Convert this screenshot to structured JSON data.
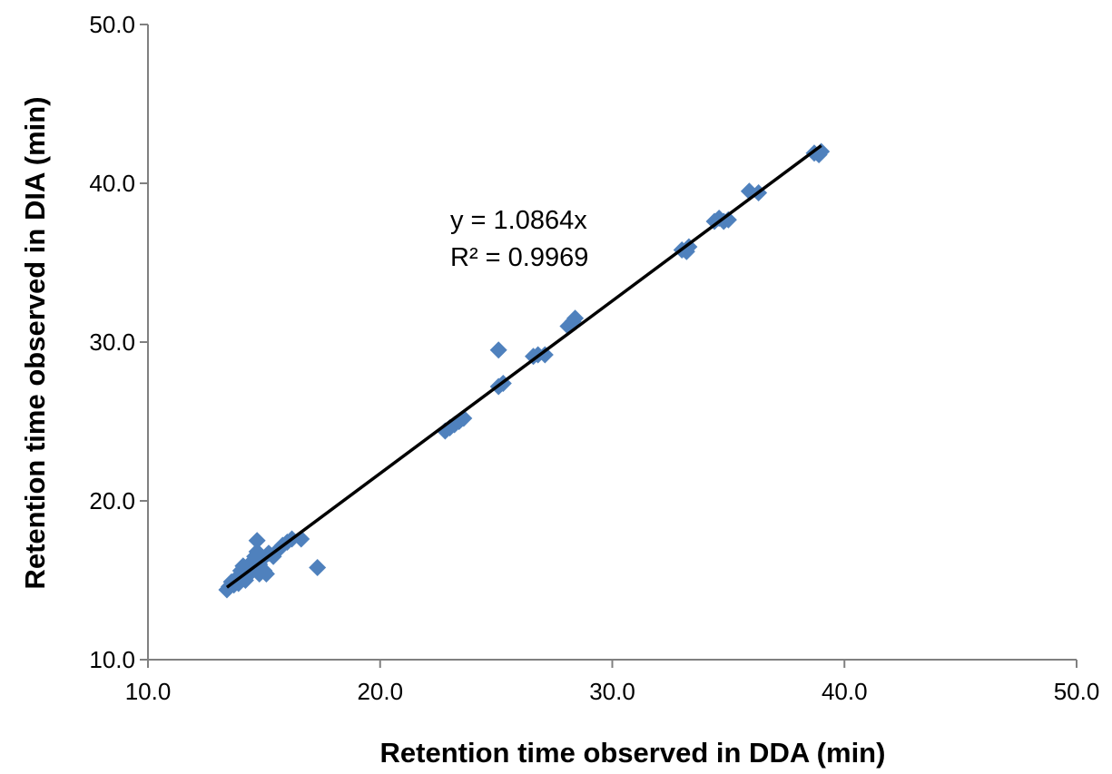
{
  "chart_data": {
    "type": "scatter",
    "title": "",
    "xlabel": "Retention time observed in DDA (min)",
    "ylabel": "Retention time observed in DIA (min)",
    "xlim": [
      10.0,
      50.0
    ],
    "ylim": [
      10.0,
      50.0
    ],
    "x_ticks": [
      "10.0",
      "20.0",
      "30.0",
      "40.0",
      "50.0"
    ],
    "y_ticks": [
      "10.0",
      "20.0",
      "30.0",
      "40.0",
      "50.0"
    ],
    "grid": false,
    "legend": "none",
    "marker": "diamond",
    "marker_color": "#4f81bd",
    "trendline": {
      "equation": "y = 1.0864x",
      "r_squared": "R² = 0.9969",
      "slope": 1.0864,
      "x_range": [
        13.4,
        39.0
      ],
      "color": "#000000"
    },
    "points": [
      [
        13.4,
        14.4
      ],
      [
        13.5,
        14.6
      ],
      [
        13.6,
        14.9
      ],
      [
        13.7,
        14.7
      ],
      [
        13.8,
        15.1
      ],
      [
        13.9,
        14.8
      ],
      [
        14.0,
        15.6
      ],
      [
        14.1,
        15.9
      ],
      [
        14.1,
        15.2
      ],
      [
        14.2,
        15.0
      ],
      [
        14.3,
        15.3
      ],
      [
        14.4,
        15.5
      ],
      [
        14.5,
        16.2
      ],
      [
        14.5,
        15.7
      ],
      [
        14.6,
        16.5
      ],
      [
        14.6,
        15.9
      ],
      [
        14.7,
        17.5
      ],
      [
        14.7,
        16.8
      ],
      [
        14.8,
        15.4
      ],
      [
        14.8,
        16.0
      ],
      [
        14.9,
        16.3
      ],
      [
        15.0,
        15.6
      ],
      [
        15.1,
        15.4
      ],
      [
        15.2,
        16.7
      ],
      [
        15.4,
        16.5
      ],
      [
        15.6,
        16.9
      ],
      [
        15.8,
        17.2
      ],
      [
        16.0,
        17.4
      ],
      [
        16.2,
        17.6
      ],
      [
        16.6,
        17.6
      ],
      [
        17.3,
        15.8
      ],
      [
        22.8,
        24.4
      ],
      [
        23.0,
        24.6
      ],
      [
        23.2,
        24.8
      ],
      [
        23.4,
        25.0
      ],
      [
        23.6,
        25.2
      ],
      [
        25.1,
        29.5
      ],
      [
        25.1,
        27.2
      ],
      [
        25.3,
        27.4
      ],
      [
        26.6,
        29.1
      ],
      [
        26.8,
        29.2
      ],
      [
        27.1,
        29.2
      ],
      [
        28.1,
        31.0
      ],
      [
        28.3,
        31.3
      ],
      [
        28.4,
        31.5
      ],
      [
        33.0,
        35.8
      ],
      [
        33.2,
        35.7
      ],
      [
        33.3,
        36.0
      ],
      [
        34.4,
        37.6
      ],
      [
        34.6,
        37.8
      ],
      [
        34.8,
        37.6
      ],
      [
        35.0,
        37.7
      ],
      [
        35.9,
        39.5
      ],
      [
        36.3,
        39.4
      ],
      [
        38.7,
        41.9
      ],
      [
        38.9,
        41.8
      ],
      [
        39.0,
        42.0
      ]
    ]
  }
}
